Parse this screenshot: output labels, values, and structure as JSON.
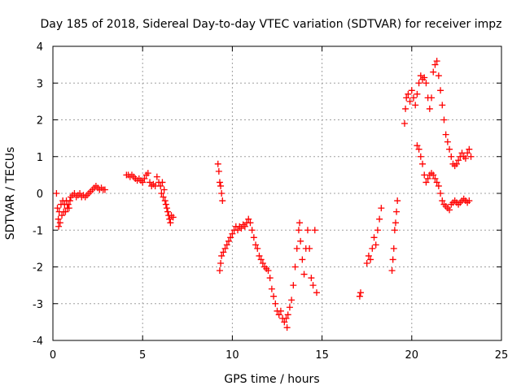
{
  "chart_data": {
    "type": "scatter",
    "title": "Day 185 of 2018, Sidereal Day-to-day VTEC variation (SDTVAR) for receiver impz",
    "xlabel": "GPS time / hours",
    "ylabel": "SDTVAR / TECUs",
    "xlim": [
      0,
      25
    ],
    "ylim": [
      -4,
      4
    ],
    "xticks": [
      0,
      5,
      10,
      15,
      20,
      25
    ],
    "yticks": [
      -4,
      -3,
      -2,
      -1,
      0,
      1,
      2,
      3,
      4
    ],
    "xtick_labels": [
      "0",
      "5",
      "10",
      "15",
      "20",
      "25"
    ],
    "ytick_labels": [
      "-4",
      "-3",
      "-2",
      "-1",
      "0",
      "1",
      "2",
      "3",
      "4"
    ],
    "grid": true,
    "legend": false,
    "marker": "plus",
    "marker_color": "#ff0000",
    "series": [
      {
        "points": [
          [
            0.2,
            0.0
          ],
          [
            0.25,
            -0.4
          ],
          [
            0.3,
            -0.7
          ],
          [
            0.32,
            -0.9
          ],
          [
            0.35,
            -0.5
          ],
          [
            0.4,
            -0.8
          ],
          [
            0.45,
            -0.3
          ],
          [
            0.5,
            -0.6
          ],
          [
            0.55,
            -0.2
          ],
          [
            0.6,
            -0.5
          ],
          [
            0.65,
            -0.3
          ],
          [
            0.7,
            -0.5
          ],
          [
            0.75,
            -0.2
          ],
          [
            0.8,
            -0.4
          ],
          [
            0.85,
            -0.3
          ],
          [
            0.9,
            -0.4
          ],
          [
            0.95,
            -0.2
          ],
          [
            1.0,
            -0.1
          ],
          [
            1.1,
            -0.05
          ],
          [
            1.2,
            0.0
          ],
          [
            1.3,
            -0.1
          ],
          [
            1.4,
            -0.05
          ],
          [
            1.5,
            0.0
          ],
          [
            1.6,
            -0.1
          ],
          [
            1.7,
            -0.05
          ],
          [
            1.8,
            -0.1
          ],
          [
            1.9,
            -0.05
          ],
          [
            2.0,
            0.0
          ],
          [
            2.1,
            0.05
          ],
          [
            2.2,
            0.1
          ],
          [
            2.3,
            0.15
          ],
          [
            2.4,
            0.2
          ],
          [
            2.5,
            0.15
          ],
          [
            2.6,
            0.1
          ],
          [
            2.7,
            0.15
          ],
          [
            2.8,
            0.1
          ],
          [
            2.9,
            0.1
          ],
          [
            4.1,
            0.5
          ],
          [
            4.2,
            0.5
          ],
          [
            4.3,
            0.45
          ],
          [
            4.4,
            0.5
          ],
          [
            4.5,
            0.45
          ],
          [
            4.6,
            0.4
          ],
          [
            4.7,
            0.35
          ],
          [
            4.8,
            0.4
          ],
          [
            4.9,
            0.35
          ],
          [
            5.0,
            0.3
          ],
          [
            5.1,
            0.4
          ],
          [
            5.2,
            0.5
          ],
          [
            5.3,
            0.55
          ],
          [
            5.4,
            0.3
          ],
          [
            5.5,
            0.2
          ],
          [
            5.6,
            0.25
          ],
          [
            5.7,
            0.2
          ],
          [
            5.8,
            0.45
          ],
          [
            5.9,
            0.3
          ],
          [
            6.0,
            0.2
          ],
          [
            6.05,
            0.0
          ],
          [
            6.1,
            0.3
          ],
          [
            6.15,
            -0.1
          ],
          [
            6.2,
            0.1
          ],
          [
            6.25,
            -0.2
          ],
          [
            6.3,
            -0.3
          ],
          [
            6.35,
            -0.4
          ],
          [
            6.4,
            -0.5
          ],
          [
            6.45,
            -0.6
          ],
          [
            6.5,
            -0.7
          ],
          [
            6.55,
            -0.8
          ],
          [
            6.6,
            -0.6
          ],
          [
            6.7,
            -0.65
          ],
          [
            9.2,
            0.8
          ],
          [
            9.25,
            0.6
          ],
          [
            9.3,
            0.3
          ],
          [
            9.35,
            0.2
          ],
          [
            9.4,
            0.0
          ],
          [
            9.45,
            -0.2
          ],
          [
            9.3,
            -2.1
          ],
          [
            9.35,
            -1.9
          ],
          [
            9.4,
            -1.7
          ],
          [
            9.5,
            -1.6
          ],
          [
            9.6,
            -1.5
          ],
          [
            9.7,
            -1.4
          ],
          [
            9.8,
            -1.3
          ],
          [
            9.9,
            -1.2
          ],
          [
            10.0,
            -1.1
          ],
          [
            10.1,
            -1.0
          ],
          [
            10.2,
            -0.9
          ],
          [
            10.3,
            -1.0
          ],
          [
            10.4,
            -0.9
          ],
          [
            10.5,
            -0.95
          ],
          [
            10.6,
            -0.85
          ],
          [
            10.7,
            -0.9
          ],
          [
            10.8,
            -0.8
          ],
          [
            10.9,
            -0.7
          ],
          [
            11.0,
            -0.8
          ],
          [
            11.1,
            -1.0
          ],
          [
            11.2,
            -1.2
          ],
          [
            11.3,
            -1.4
          ],
          [
            11.4,
            -1.5
          ],
          [
            11.5,
            -1.7
          ],
          [
            11.6,
            -1.8
          ],
          [
            11.7,
            -1.9
          ],
          [
            11.8,
            -2.0
          ],
          [
            11.9,
            -2.05
          ],
          [
            12.0,
            -2.1
          ],
          [
            12.1,
            -2.3
          ],
          [
            12.2,
            -2.6
          ],
          [
            12.3,
            -2.8
          ],
          [
            12.4,
            -3.0
          ],
          [
            12.5,
            -3.2
          ],
          [
            12.6,
            -3.3
          ],
          [
            12.7,
            -3.2
          ],
          [
            12.8,
            -3.4
          ],
          [
            12.9,
            -3.5
          ],
          [
            13.0,
            -3.4
          ],
          [
            13.05,
            -3.65
          ],
          [
            13.1,
            -3.3
          ],
          [
            13.2,
            -3.1
          ],
          [
            13.3,
            -2.9
          ],
          [
            13.4,
            -2.5
          ],
          [
            13.5,
            -2.0
          ],
          [
            13.6,
            -1.5
          ],
          [
            13.7,
            -1.0
          ],
          [
            13.75,
            -0.8
          ],
          [
            13.8,
            -1.3
          ],
          [
            13.9,
            -1.8
          ],
          [
            14.0,
            -2.2
          ],
          [
            14.1,
            -1.5
          ],
          [
            14.2,
            -1.0
          ],
          [
            14.3,
            -1.5
          ],
          [
            14.4,
            -2.3
          ],
          [
            14.5,
            -2.5
          ],
          [
            14.6,
            -1.0
          ],
          [
            14.7,
            -2.7
          ],
          [
            17.1,
            -2.8
          ],
          [
            17.15,
            -2.7
          ],
          [
            17.5,
            -1.9
          ],
          [
            17.6,
            -1.7
          ],
          [
            17.7,
            -1.8
          ],
          [
            17.8,
            -1.5
          ],
          [
            17.9,
            -1.2
          ],
          [
            18.0,
            -1.4
          ],
          [
            18.1,
            -1.0
          ],
          [
            18.2,
            -0.7
          ],
          [
            18.3,
            -0.4
          ],
          [
            18.9,
            -2.1
          ],
          [
            18.95,
            -1.8
          ],
          [
            19.0,
            -1.5
          ],
          [
            19.05,
            -1.0
          ],
          [
            19.1,
            -0.8
          ],
          [
            19.15,
            -0.5
          ],
          [
            19.2,
            -0.2
          ],
          [
            19.6,
            1.9
          ],
          [
            19.65,
            2.3
          ],
          [
            19.7,
            2.6
          ],
          [
            19.8,
            2.7
          ],
          [
            19.9,
            2.5
          ],
          [
            20.0,
            2.8
          ],
          [
            20.1,
            2.6
          ],
          [
            20.2,
            2.4
          ],
          [
            20.3,
            2.7
          ],
          [
            20.4,
            3.0
          ],
          [
            20.5,
            3.2
          ],
          [
            20.6,
            3.1
          ],
          [
            20.7,
            3.15
          ],
          [
            20.8,
            3.0
          ],
          [
            20.9,
            2.6
          ],
          [
            21.0,
            2.3
          ],
          [
            21.1,
            2.6
          ],
          [
            21.2,
            3.3
          ],
          [
            21.3,
            3.5
          ],
          [
            21.4,
            3.6
          ],
          [
            21.5,
            3.2
          ],
          [
            21.6,
            2.8
          ],
          [
            21.7,
            2.4
          ],
          [
            21.8,
            2.0
          ],
          [
            21.9,
            1.6
          ],
          [
            22.0,
            1.4
          ],
          [
            22.1,
            1.2
          ],
          [
            22.2,
            1.0
          ],
          [
            22.3,
            0.8
          ],
          [
            22.4,
            0.75
          ],
          [
            22.5,
            0.8
          ],
          [
            22.6,
            0.9
          ],
          [
            22.7,
            1.0
          ],
          [
            22.8,
            1.1
          ],
          [
            22.9,
            1.0
          ],
          [
            23.0,
            0.95
          ],
          [
            23.1,
            1.1
          ],
          [
            23.2,
            1.2
          ],
          [
            23.3,
            1.0
          ],
          [
            20.3,
            1.3
          ],
          [
            20.4,
            1.2
          ],
          [
            20.5,
            1.0
          ],
          [
            20.6,
            0.8
          ],
          [
            20.7,
            0.5
          ],
          [
            20.8,
            0.3
          ],
          [
            20.9,
            0.4
          ],
          [
            21.0,
            0.5
          ],
          [
            21.1,
            0.55
          ],
          [
            21.2,
            0.5
          ],
          [
            21.3,
            0.4
          ],
          [
            21.4,
            0.3
          ],
          [
            21.5,
            0.2
          ],
          [
            21.6,
            0.0
          ],
          [
            21.7,
            -0.2
          ],
          [
            21.8,
            -0.3
          ],
          [
            21.9,
            -0.35
          ],
          [
            22.0,
            -0.4
          ],
          [
            22.1,
            -0.45
          ],
          [
            22.2,
            -0.3
          ],
          [
            22.3,
            -0.25
          ],
          [
            22.4,
            -0.2
          ],
          [
            22.5,
            -0.25
          ],
          [
            22.6,
            -0.3
          ],
          [
            22.7,
            -0.25
          ],
          [
            22.8,
            -0.2
          ],
          [
            22.9,
            -0.15
          ],
          [
            23.0,
            -0.2
          ],
          [
            23.1,
            -0.25
          ],
          [
            23.2,
            -0.2
          ]
        ]
      }
    ]
  }
}
